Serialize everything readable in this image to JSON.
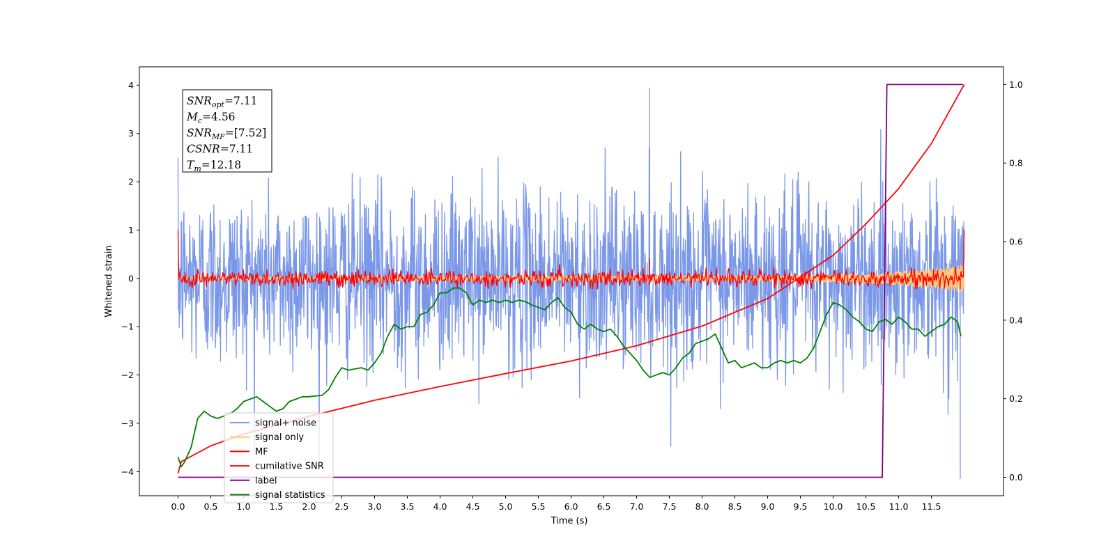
{
  "chart_data": {
    "type": "line",
    "xlabel": "Time (s)",
    "ylabel": "Whitened strain",
    "xlim": [
      -0.59,
      12.6
    ],
    "ylim": [
      -4.5,
      4.38
    ],
    "y2lim": [
      -0.047,
      1.045
    ],
    "x_ticks": [
      0.0,
      0.5,
      1.0,
      1.5,
      2.0,
      2.5,
      3.0,
      3.5,
      4.0,
      4.5,
      5.0,
      5.5,
      6.0,
      6.5,
      7.0,
      7.5,
      8.0,
      8.5,
      9.0,
      9.5,
      10.0,
      10.5,
      11.0,
      11.5
    ],
    "x_tick_labels": [
      "0.0",
      "0.5",
      "1.0",
      "1.5",
      "2.0",
      "2.5",
      "3.0",
      "3.5",
      "4.0",
      "4.5",
      "5.0",
      "5.5",
      "6.0",
      "6.5",
      "7.0",
      "7.5",
      "8.0",
      "8.5",
      "9.0",
      "9.5",
      "10.0",
      "10.5",
      "11.0",
      "11.5"
    ],
    "y_ticks": [
      -4,
      -3,
      -2,
      -1,
      0,
      1,
      2,
      3,
      4
    ],
    "y_tick_labels": [
      "−4",
      "−3",
      "−2",
      "−1",
      "0",
      "1",
      "2",
      "3",
      "4"
    ],
    "y2_ticks": [
      0.0,
      0.2,
      0.4,
      0.6,
      0.8,
      1.0
    ],
    "y2_tick_labels": [
      "0.0",
      "0.2",
      "0.4",
      "0.6",
      "0.8",
      "1.0"
    ],
    "grid": false,
    "legend_position": "lower-left",
    "annotation": [
      {
        "main": "SNR",
        "sub": "opt",
        "rest": "=7.11"
      },
      {
        "main": "M",
        "sub": "c",
        "rest": "=4.56"
      },
      {
        "main": "SNR",
        "sub": "MF",
        "rest": "=[7.52]"
      },
      {
        "main": "CSNR",
        "sub": "",
        "rest": "=7.11"
      },
      {
        "main": "T",
        "sub": "m",
        "rest": "=12.18"
      }
    ],
    "series": [
      {
        "name": "signal+ noise",
        "axis": "left",
        "color": "#7a97e8",
        "style": "noise",
        "t_range": [
          0.0,
          12.0
        ],
        "mean": 0.0,
        "std": 0.9,
        "max": 3.95,
        "min": -4.15
      },
      {
        "name": "signal only",
        "axis": "left",
        "color": "#ffc87a",
        "style": "chirp",
        "t_range": [
          0.0,
          12.0
        ],
        "amplitude_points": {
          "t": [
            0.0,
            9.0,
            10.5,
            11.5,
            12.0
          ],
          "amp": [
            0.04,
            0.05,
            0.1,
            0.2,
            0.3
          ]
        }
      },
      {
        "name": "MF",
        "axis": "left",
        "color": "#ff0000",
        "style": "noise",
        "t_range": [
          0.0,
          12.0
        ],
        "mean": 0.0,
        "std": 0.09,
        "max": 0.42,
        "min": -0.22,
        "edge_values": [
          1.0,
          1.0
        ]
      },
      {
        "name": "cumilative SNR",
        "axis": "right",
        "color": "#ff0000",
        "style": "line",
        "x": [
          0.0,
          0.05,
          0.5,
          1.0,
          2.0,
          3.0,
          4.0,
          5.0,
          6.0,
          7.0,
          8.0,
          9.0,
          10.0,
          10.5,
          11.0,
          11.5,
          12.0
        ],
        "y": [
          0.01,
          0.04,
          0.08,
          0.11,
          0.155,
          0.196,
          0.231,
          0.264,
          0.296,
          0.335,
          0.385,
          0.455,
          0.565,
          0.645,
          0.735,
          0.85,
          1.0
        ]
      },
      {
        "name": "label",
        "axis": "right",
        "color": "#800080",
        "style": "line",
        "x": [
          0.0,
          10.75,
          10.82,
          11.98
        ],
        "y": [
          0.0,
          0.0,
          1.0,
          1.0
        ]
      },
      {
        "name": "signal statistics",
        "axis": "left",
        "color": "#008000",
        "style": "line",
        "x": [
          0.0,
          0.05,
          0.1,
          0.2,
          0.3,
          0.4,
          0.5,
          0.6,
          0.7,
          0.8,
          0.9,
          1.0,
          1.1,
          1.2,
          1.3,
          1.4,
          1.5,
          1.6,
          1.7,
          1.8,
          1.9,
          2.0,
          2.2,
          2.3,
          2.4,
          2.5,
          2.6,
          2.8,
          2.9,
          3.0,
          3.1,
          3.2,
          3.3,
          3.4,
          3.5,
          3.6,
          3.7,
          3.8,
          3.9,
          4.0,
          4.1,
          4.2,
          4.3,
          4.4,
          4.5,
          4.6,
          4.7,
          4.8,
          4.9,
          5.0,
          5.1,
          5.2,
          5.3,
          5.4,
          5.5,
          5.6,
          5.7,
          5.8,
          5.9,
          6.0,
          6.1,
          6.2,
          6.3,
          6.4,
          6.5,
          6.6,
          6.7,
          6.8,
          6.9,
          7.0,
          7.1,
          7.2,
          7.3,
          7.4,
          7.5,
          7.6,
          7.7,
          7.8,
          7.9,
          8.0,
          8.1,
          8.2,
          8.3,
          8.4,
          8.5,
          8.6,
          8.7,
          8.8,
          8.9,
          9.0,
          9.1,
          9.2,
          9.3,
          9.4,
          9.5,
          9.6,
          9.7,
          9.8,
          9.9,
          10.0,
          10.1,
          10.2,
          10.3,
          10.4,
          10.5,
          10.6,
          10.7,
          10.8,
          10.9,
          11.0,
          11.1,
          11.2,
          11.3,
          11.4,
          11.5,
          11.6,
          11.7,
          11.8,
          11.9,
          11.95
        ],
        "y": [
          -3.7,
          -3.9,
          -3.8,
          -3.5,
          -2.9,
          -2.75,
          -2.85,
          -2.9,
          -2.85,
          -2.8,
          -2.7,
          -2.55,
          -2.5,
          -2.45,
          -2.55,
          -2.65,
          -2.75,
          -2.7,
          -2.55,
          -2.5,
          -2.45,
          -2.45,
          -2.42,
          -2.3,
          -2.05,
          -1.85,
          -1.9,
          -1.85,
          -1.9,
          -1.75,
          -1.55,
          -1.2,
          -0.95,
          -1.05,
          -1.0,
          -1.0,
          -0.75,
          -0.7,
          -0.55,
          -0.3,
          -0.3,
          -0.2,
          -0.2,
          -0.3,
          -0.55,
          -0.45,
          -0.5,
          -0.45,
          -0.5,
          -0.45,
          -0.5,
          -0.45,
          -0.48,
          -0.55,
          -0.6,
          -0.65,
          -0.5,
          -0.4,
          -0.6,
          -0.7,
          -0.95,
          -1.05,
          -0.95,
          -1.05,
          -1.1,
          -1.05,
          -1.2,
          -1.4,
          -1.55,
          -1.7,
          -1.9,
          -2.05,
          -2.0,
          -1.95,
          -2.0,
          -1.85,
          -1.65,
          -1.55,
          -1.35,
          -1.3,
          -1.25,
          -1.15,
          -1.45,
          -1.75,
          -1.7,
          -1.85,
          -1.8,
          -1.75,
          -1.85,
          -1.85,
          -1.75,
          -1.7,
          -1.75,
          -1.7,
          -1.75,
          -1.65,
          -1.45,
          -1.1,
          -0.75,
          -0.5,
          -0.55,
          -0.65,
          -0.8,
          -0.9,
          -1.05,
          -1.1,
          -0.9,
          -0.85,
          -0.95,
          -0.8,
          -0.9,
          -1.05,
          -1.05,
          -1.2,
          -1.1,
          -1.0,
          -0.95,
          -0.8,
          -0.9,
          -1.2
        ]
      }
    ]
  }
}
